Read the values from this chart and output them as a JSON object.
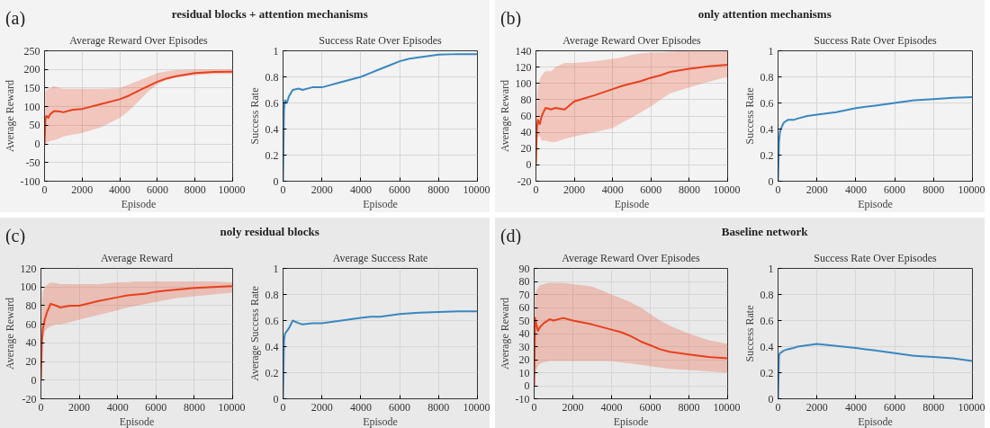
{
  "chart_data": [
    {
      "type": "line",
      "title": "Average Reward Over Episodes",
      "xlabel": "Episode",
      "ylabel": "Average Reward",
      "annotations": [
        "(a)",
        "residual blocks + attention mechanisms"
      ],
      "xlim": [
        0,
        10000
      ],
      "xticks": [
        0,
        2000,
        4000,
        6000,
        8000,
        10000
      ],
      "ylim": [
        -100,
        250
      ],
      "yticks": [
        -100,
        -50,
        0,
        50,
        100,
        150,
        200,
        250
      ],
      "grid": true,
      "x": [
        0,
        50,
        100,
        200,
        300,
        500,
        800,
        1000,
        1500,
        2000,
        3000,
        4000,
        4500,
        5000,
        5500,
        6000,
        6500,
        7000,
        8000,
        9000,
        10000
      ],
      "series": [
        {
          "color": "#e8401c",
          "values": [
            0,
            70,
            75,
            70,
            80,
            88,
            87,
            85,
            92,
            94,
            107,
            120,
            130,
            143,
            155,
            167,
            176,
            182,
            190,
            193,
            194
          ],
          "lower": [
            0,
            2,
            5,
            5,
            8,
            10,
            15,
            20,
            25,
            30,
            45,
            70,
            90,
            115,
            140,
            160,
            172,
            178,
            185,
            188,
            188
          ],
          "upper": [
            0,
            140,
            145,
            148,
            150,
            155,
            150,
            148,
            148,
            148,
            148,
            150,
            160,
            170,
            180,
            190,
            195,
            198,
            200,
            200,
            200
          ]
        }
      ]
    },
    {
      "type": "line",
      "title": "Success Rate Over Episodes",
      "xlabel": "Episode",
      "ylabel": "Success Rate",
      "xlim": [
        0,
        10000
      ],
      "xticks": [
        0,
        2000,
        4000,
        6000,
        8000,
        10000
      ],
      "ylim": [
        0,
        1
      ],
      "yticks": [
        0,
        0.2,
        0.4,
        0.6,
        0.8,
        1
      ],
      "grid": true,
      "x": [
        0,
        50,
        100,
        200,
        300,
        500,
        800,
        1000,
        1500,
        2000,
        3000,
        4000,
        4500,
        5000,
        5500,
        6000,
        6500,
        7000,
        8000,
        9000,
        10000
      ],
      "series": [
        {
          "color": "#3a87c0",
          "values": [
            0,
            0.55,
            0.62,
            0.6,
            0.65,
            0.7,
            0.71,
            0.7,
            0.72,
            0.72,
            0.76,
            0.8,
            0.83,
            0.86,
            0.89,
            0.92,
            0.94,
            0.95,
            0.97,
            0.975,
            0.975
          ]
        }
      ]
    },
    {
      "type": "line",
      "title": "Average Reward Over Episodes",
      "xlabel": "Episode",
      "ylabel": "Average Reward",
      "annotations": [
        "(b)",
        "only attention mechanisms"
      ],
      "xlim": [
        0,
        10000
      ],
      "xticks": [
        0,
        2000,
        4000,
        6000,
        8000,
        10000
      ],
      "ylim": [
        -20,
        140
      ],
      "yticks": [
        -20,
        0,
        20,
        40,
        60,
        80,
        100,
        120,
        140
      ],
      "grid": true,
      "x": [
        0,
        50,
        100,
        200,
        300,
        500,
        800,
        1000,
        1500,
        2000,
        3000,
        4000,
        4500,
        5000,
        5500,
        6000,
        6500,
        7000,
        8000,
        9000,
        10000
      ],
      "series": [
        {
          "color": "#e8401c",
          "values": [
            0,
            45,
            55,
            50,
            60,
            70,
            68,
            70,
            68,
            78,
            85,
            93,
            97,
            100,
            103,
            107,
            110,
            114,
            118,
            121,
            123
          ],
          "lower": [
            0,
            30,
            35,
            35,
            30,
            30,
            28,
            28,
            32,
            35,
            40,
            45,
            52,
            58,
            65,
            72,
            80,
            88,
            95,
            102,
            108
          ],
          "upper": [
            0,
            80,
            95,
            105,
            110,
            115,
            115,
            120,
            125,
            125,
            127,
            130,
            132,
            135,
            137,
            138,
            138,
            139,
            140,
            140,
            140
          ]
        }
      ]
    },
    {
      "type": "line",
      "title": "Success Rate Over Episodes",
      "xlabel": "Episode",
      "ylabel": "Success Rate",
      "xlim": [
        0,
        10000
      ],
      "xticks": [
        0,
        2000,
        4000,
        6000,
        8000,
        10000
      ],
      "ylim": [
        0,
        1
      ],
      "yticks": [
        0,
        0.2,
        0.4,
        0.6,
        0.8,
        1
      ],
      "grid": true,
      "x": [
        0,
        50,
        100,
        200,
        300,
        500,
        800,
        1000,
        1500,
        2000,
        3000,
        4000,
        4500,
        5000,
        5500,
        6000,
        6500,
        7000,
        8000,
        9000,
        10000
      ],
      "series": [
        {
          "color": "#3a87c0",
          "values": [
            0,
            0.3,
            0.38,
            0.42,
            0.45,
            0.47,
            0.47,
            0.48,
            0.5,
            0.51,
            0.53,
            0.56,
            0.57,
            0.58,
            0.59,
            0.6,
            0.61,
            0.62,
            0.63,
            0.64,
            0.645
          ]
        }
      ]
    },
    {
      "type": "line",
      "title": "Average Reward",
      "xlabel": "Episode",
      "ylabel": "Average Reward",
      "annotations": [
        "(c)",
        "noly residual blocks"
      ],
      "xlim": [
        0,
        10000
      ],
      "xticks": [
        0,
        2000,
        4000,
        6000,
        8000,
        10000
      ],
      "ylim": [
        -20,
        120
      ],
      "yticks": [
        -20,
        0,
        20,
        40,
        60,
        80,
        100,
        120
      ],
      "grid": true,
      "x": [
        0,
        50,
        100,
        200,
        300,
        500,
        800,
        1000,
        1500,
        2000,
        3000,
        4000,
        4500,
        5000,
        5500,
        6000,
        6500,
        7000,
        8000,
        9000,
        10000
      ],
      "series": [
        {
          "color": "#e8401c",
          "values": [
            0,
            40,
            55,
            65,
            72,
            82,
            80,
            78,
            80,
            80,
            85,
            89,
            91,
            92,
            93,
            95,
            96,
            97,
            99,
            100,
            101
          ],
          "lower": [
            0,
            30,
            45,
            52,
            55,
            58,
            60,
            60,
            62,
            65,
            70,
            75,
            78,
            80,
            82,
            84,
            86,
            88,
            90,
            92,
            94
          ],
          "upper": [
            0,
            85,
            95,
            100,
            102,
            105,
            104,
            103,
            103,
            103,
            103,
            105,
            105,
            106,
            106,
            106,
            106,
            106,
            106,
            106,
            105
          ]
        }
      ]
    },
    {
      "type": "line",
      "title": "Average Success Rate",
      "xlabel": "Episode",
      "ylabel": "Average Success Rate",
      "xlim": [
        0,
        10000
      ],
      "xticks": [
        0,
        2000,
        4000,
        6000,
        8000,
        10000
      ],
      "ylim": [
        0,
        1
      ],
      "yticks": [
        0,
        0.2,
        0.4,
        0.6,
        0.8,
        1
      ],
      "grid": true,
      "x": [
        0,
        50,
        100,
        200,
        300,
        500,
        800,
        1000,
        1500,
        2000,
        3000,
        4000,
        4500,
        5000,
        5500,
        6000,
        6500,
        7000,
        8000,
        9000,
        10000
      ],
      "series": [
        {
          "color": "#3a87c0",
          "values": [
            0,
            0.45,
            0.5,
            0.52,
            0.54,
            0.6,
            0.58,
            0.57,
            0.58,
            0.58,
            0.6,
            0.62,
            0.63,
            0.63,
            0.64,
            0.65,
            0.655,
            0.66,
            0.665,
            0.67,
            0.67
          ]
        }
      ]
    },
    {
      "type": "line",
      "title": "Average Reward Over Episodes",
      "xlabel": "Episode",
      "ylabel": "Average Reward",
      "annotations": [
        "(d)",
        "Baseline network"
      ],
      "xlim": [
        0,
        10000
      ],
      "xticks": [
        0,
        2000,
        4000,
        6000,
        8000,
        10000
      ],
      "ylim": [
        -10,
        90
      ],
      "yticks": [
        -10,
        0,
        10,
        20,
        30,
        40,
        50,
        60,
        70,
        80,
        90
      ],
      "grid": true,
      "x": [
        0,
        50,
        100,
        200,
        300,
        500,
        800,
        1000,
        1500,
        2000,
        3000,
        4000,
        4500,
        5000,
        5500,
        6000,
        6500,
        7000,
        8000,
        9000,
        10000
      ],
      "series": [
        {
          "color": "#e8401c",
          "values": [
            0,
            52,
            48,
            42,
            45,
            48,
            51,
            50,
            52,
            50,
            47,
            43,
            41,
            38,
            34,
            31,
            28,
            26,
            24,
            22,
            21
          ],
          "lower": [
            0,
            10,
            12,
            15,
            17,
            18,
            19,
            19,
            19,
            19,
            19,
            19,
            18,
            17,
            16,
            15,
            14,
            13,
            12,
            11,
            10
          ],
          "upper": [
            0,
            70,
            72,
            75,
            77,
            78,
            79,
            79,
            79,
            78,
            76,
            70,
            67,
            64,
            60,
            55,
            50,
            46,
            40,
            35,
            32
          ]
        }
      ]
    },
    {
      "type": "line",
      "title": "Success Rate Over Episodes",
      "xlabel": "Episode",
      "ylabel": "Success Rate",
      "xlim": [
        0,
        10000
      ],
      "xticks": [
        0,
        2000,
        4000,
        6000,
        8000,
        10000
      ],
      "ylim": [
        0,
        1
      ],
      "yticks": [
        0,
        0.2,
        0.4,
        0.6,
        0.8,
        1
      ],
      "grid": true,
      "x": [
        0,
        50,
        100,
        200,
        300,
        500,
        800,
        1000,
        1500,
        2000,
        3000,
        4000,
        4500,
        5000,
        5500,
        6000,
        6500,
        7000,
        8000,
        9000,
        10000
      ],
      "series": [
        {
          "color": "#3a87c0",
          "values": [
            0,
            0.33,
            0.35,
            0.36,
            0.37,
            0.38,
            0.39,
            0.4,
            0.41,
            0.42,
            0.405,
            0.39,
            0.38,
            0.37,
            0.36,
            0.35,
            0.34,
            0.33,
            0.32,
            0.31,
            0.29
          ]
        }
      ]
    }
  ]
}
